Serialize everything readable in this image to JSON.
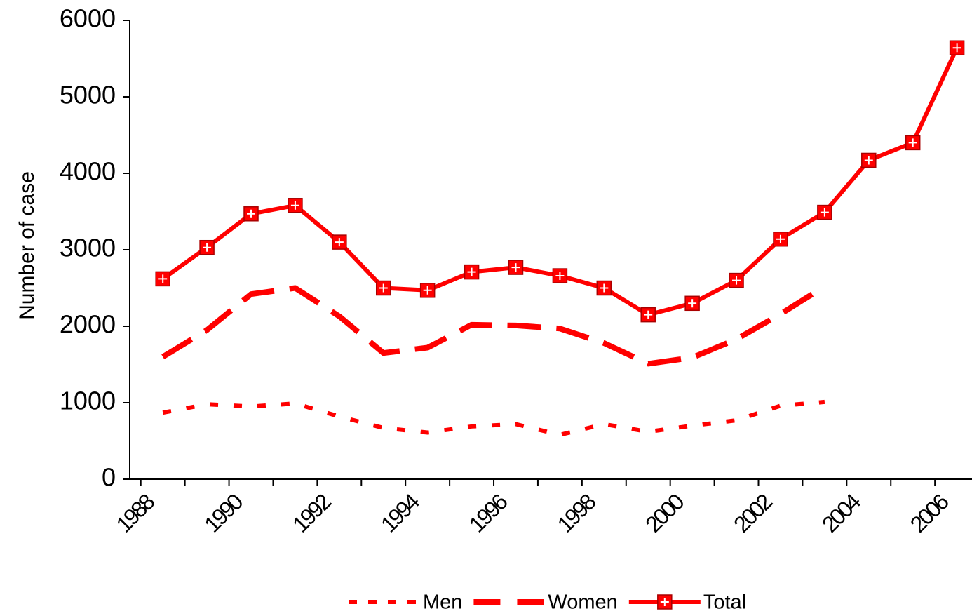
{
  "chart_data": {
    "type": "line",
    "ylabel": "Number of case",
    "x": [
      1988.5,
      1989.5,
      1990.5,
      1991.5,
      1992.5,
      1993.5,
      1994.5,
      1995.5,
      1996.5,
      1997.5,
      1998.5,
      1999.5,
      2000.5,
      2001.5,
      2002.5,
      2003.5,
      2004.5,
      2005.5,
      2006.5
    ],
    "series": [
      {
        "name": "Men",
        "color": "#ff0000",
        "dash": "short",
        "values": [
          870,
          980,
          950,
          990,
          820,
          670,
          610,
          690,
          720,
          580,
          720,
          620,
          700,
          770,
          960,
          1010,
          null,
          null,
          null
        ]
      },
      {
        "name": "Women",
        "color": "#ff0000",
        "dash": "long",
        "values": [
          1600,
          1950,
          2420,
          2500,
          2130,
          1650,
          1720,
          2020,
          2010,
          1970,
          1780,
          1510,
          1590,
          1830,
          2160,
          2520,
          null,
          null,
          null
        ]
      },
      {
        "name": "Total",
        "color": "#ff0000",
        "dash": "solid",
        "marker": "square-plus",
        "values": [
          2620,
          3030,
          3470,
          3580,
          3100,
          2500,
          2470,
          2710,
          2770,
          2660,
          2500,
          2150,
          2300,
          2600,
          3140,
          3490,
          4170,
          4400,
          5640
        ]
      }
    ],
    "xlim": [
      1987.75,
      2006.84
    ],
    "xticks": [
      1988,
      1990,
      1992,
      1994,
      1996,
      1998,
      2000,
      2002,
      2004,
      2006
    ],
    "xminor_ticks": [
      1989,
      1991,
      1993,
      1995,
      1997,
      1999,
      2001,
      2003,
      2005
    ],
    "ylim": [
      0,
      6000
    ],
    "yticks": [
      0,
      1000,
      2000,
      3000,
      4000,
      5000,
      6000
    ],
    "grid": false,
    "legend": "bottom"
  }
}
